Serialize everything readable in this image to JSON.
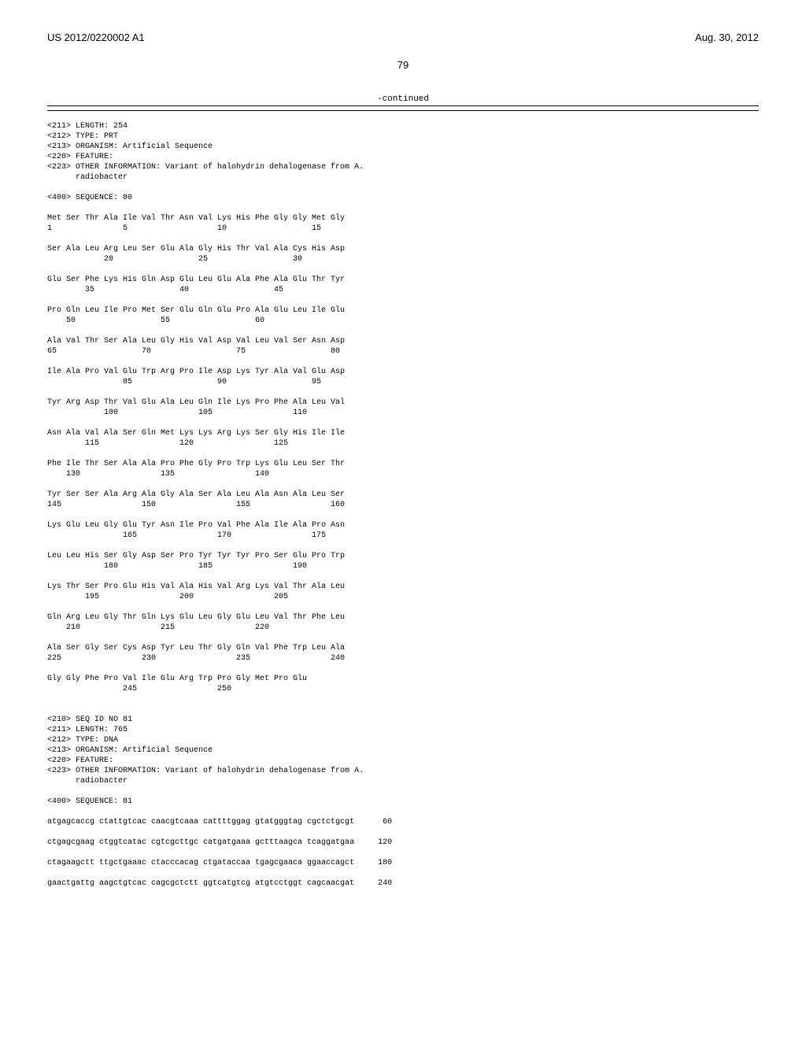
{
  "header": {
    "pub_number": "US 2012/0220002 A1",
    "pub_date": "Aug. 30, 2012"
  },
  "page_number": "79",
  "continued_label": "-continued",
  "seq80": {
    "length_line": "<211> LENGTH: 254",
    "type_line": "<212> TYPE: PRT",
    "organism_line": "<213> ORGANISM: Artificial Sequence",
    "feature_line": "<220> FEATURE:",
    "other_info_line1": "<223> OTHER INFORMATION: Variant of halohydrin dehalogenase from A.",
    "other_info_line2": "      radiobacter",
    "sequence_label": "<400> SEQUENCE: 80",
    "protein_rows": [
      {
        "seq": "Met Ser Thr Ala Ile Val Thr Asn Val Lys His Phe Gly Gly Met Gly",
        "nums": "1               5                   10                  15"
      },
      {
        "seq": "Ser Ala Leu Arg Leu Ser Glu Ala Gly His Thr Val Ala Cys His Asp",
        "nums": "            20                  25                  30"
      },
      {
        "seq": "Glu Ser Phe Lys His Gln Asp Glu Leu Glu Ala Phe Ala Glu Thr Tyr",
        "nums": "        35                  40                  45"
      },
      {
        "seq": "Pro Gln Leu Ile Pro Met Ser Glu Gln Glu Pro Ala Glu Leu Ile Glu",
        "nums": "    50                  55                  60"
      },
      {
        "seq": "Ala Val Thr Ser Ala Leu Gly His Val Asp Val Leu Val Ser Asn Asp",
        "nums": "65                  70                  75                  80"
      },
      {
        "seq": "Ile Ala Pro Val Glu Trp Arg Pro Ile Asp Lys Tyr Ala Val Glu Asp",
        "nums": "                85                  90                  95"
      },
      {
        "seq": "Tyr Arg Asp Thr Val Glu Ala Leu Gln Ile Lys Pro Phe Ala Leu Val",
        "nums": "            100                 105                 110"
      },
      {
        "seq": "Asn Ala Val Ala Ser Gln Met Lys Lys Arg Lys Ser Gly His Ile Ile",
        "nums": "        115                 120                 125"
      },
      {
        "seq": "Phe Ile Thr Ser Ala Ala Pro Phe Gly Pro Trp Lys Glu Leu Ser Thr",
        "nums": "    130                 135                 140"
      },
      {
        "seq": "Tyr Ser Ser Ala Arg Ala Gly Ala Ser Ala Leu Ala Asn Ala Leu Ser",
        "nums": "145                 150                 155                 160"
      },
      {
        "seq": "Lys Glu Leu Gly Glu Tyr Asn Ile Pro Val Phe Ala Ile Ala Pro Asn",
        "nums": "                165                 170                 175"
      },
      {
        "seq": "Leu Leu His Ser Gly Asp Ser Pro Tyr Tyr Tyr Pro Ser Glu Pro Trp",
        "nums": "            180                 185                 190"
      },
      {
        "seq": "Lys Thr Ser Pro Glu His Val Ala His Val Arg Lys Val Thr Ala Leu",
        "nums": "        195                 200                 205"
      },
      {
        "seq": "Gln Arg Leu Gly Thr Gln Lys Glu Leu Gly Glu Leu Val Thr Phe Leu",
        "nums": "    210                 215                 220"
      },
      {
        "seq": "Ala Ser Gly Ser Cys Asp Tyr Leu Thr Gly Gln Val Phe Trp Leu Ala",
        "nums": "225                 230                 235                 240"
      },
      {
        "seq": "Gly Gly Phe Pro Val Ile Glu Arg Trp Pro Gly Met Pro Glu",
        "nums": "                245                 250"
      }
    ]
  },
  "seq81": {
    "seqid_line": "<210> SEQ ID NO 81",
    "length_line": "<211> LENGTH: 765",
    "type_line": "<212> TYPE: DNA",
    "organism_line": "<213> ORGANISM: Artificial Sequence",
    "feature_line": "<220> FEATURE:",
    "other_info_line1": "<223> OTHER INFORMATION: Variant of halohydrin dehalogenase from A.",
    "other_info_line2": "      radiobacter",
    "sequence_label": "<400> SEQUENCE: 81",
    "dna_rows": [
      {
        "seq": "atgagcaccg ctattgtcac caacgtcaaa cattttggag gtatgggtag cgctctgcgt",
        "pos": "60"
      },
      {
        "seq": "ctgagcgaag ctggtcatac cgtcgcttgc catgatgaaa gctttaagca tcaggatgaa",
        "pos": "120"
      },
      {
        "seq": "ctagaagctt ttgctgaaac ctacccacag ctgataccaa tgagcgaaca ggaaccagct",
        "pos": "180"
      },
      {
        "seq": "gaactgattg aagctgtcac cagcgctctt ggtcatgtcg atgtcctggt cagcaacgat",
        "pos": "240"
      }
    ]
  }
}
